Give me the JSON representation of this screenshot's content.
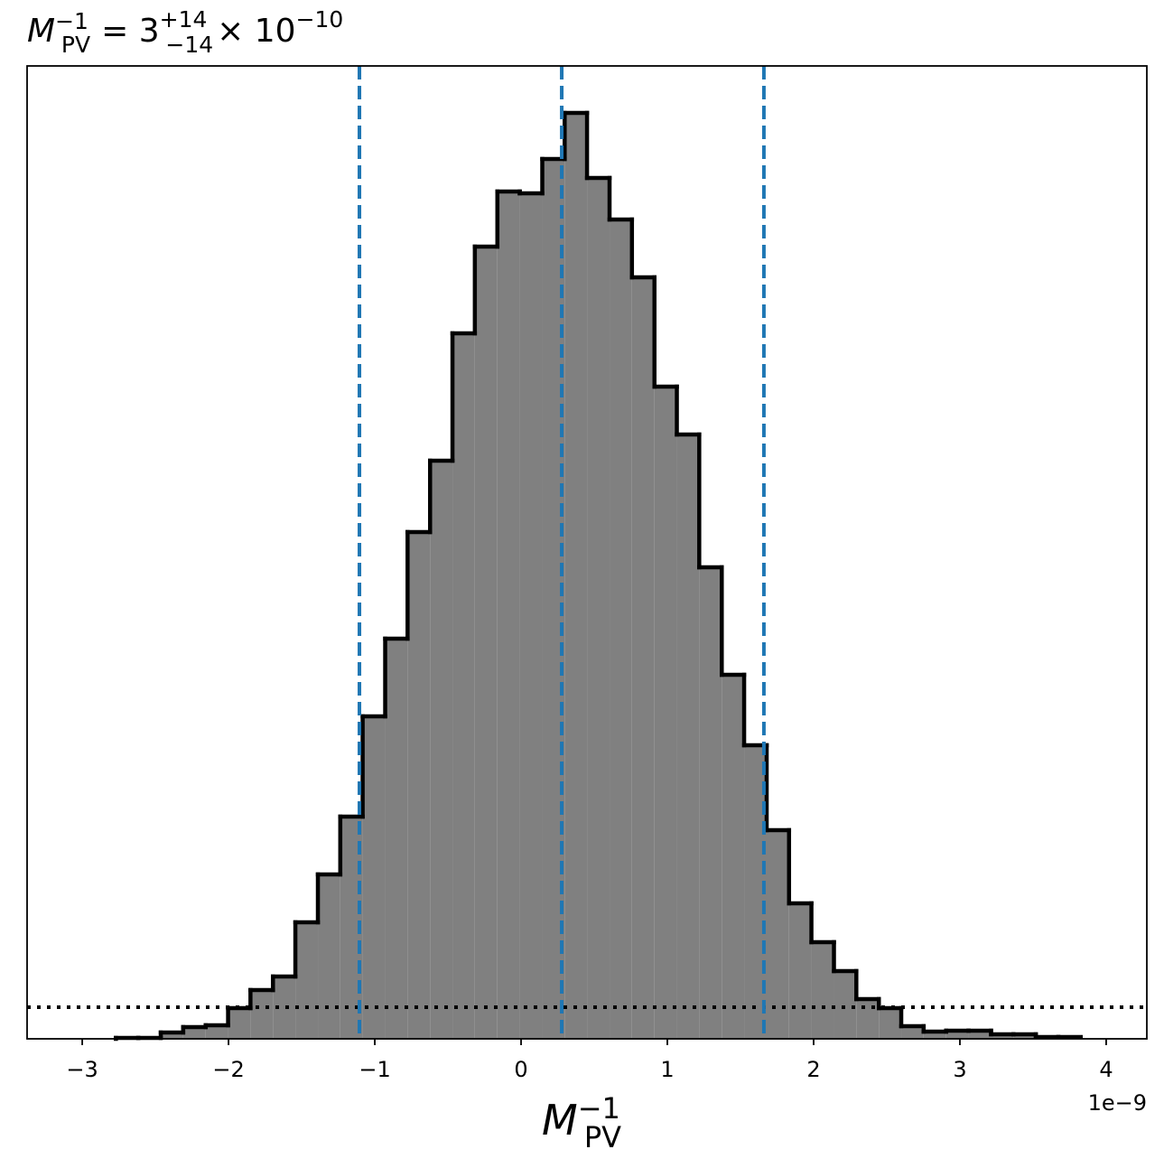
{
  "chart_data": {
    "type": "histogram",
    "title": {
      "symbol": "M",
      "sup": "−1",
      "sub": "PV",
      "equals": "= 3",
      "upper": "+14",
      "lower": "−14",
      "times": "× 10",
      "exponent": "−10"
    },
    "x_label": {
      "symbol": "M",
      "sup": "−1",
      "sub": "PV"
    },
    "x_offset_label": "1e−9",
    "bins": [
      -2.77,
      -2.617,
      -2.463,
      -2.31,
      -2.156,
      -2.003,
      -1.85,
      -1.696,
      -1.543,
      -1.389,
      -1.236,
      -1.083,
      -0.929,
      -0.776,
      -0.622,
      -0.469,
      -0.316,
      -0.162,
      -0.009,
      0.145,
      0.298,
      0.451,
      0.605,
      0.758,
      0.912,
      1.065,
      1.218,
      1.372,
      1.525,
      1.679,
      1.832,
      1.985,
      2.139,
      2.292,
      2.446,
      2.599,
      2.752,
      2.906,
      3.059,
      3.213,
      3.366,
      3.519,
      3.673,
      3.826
    ],
    "values": [
      1,
      1,
      7,
      13,
      15,
      34,
      54,
      69,
      129,
      182,
      246,
      357,
      443,
      561,
      640,
      781,
      877,
      938,
      936,
      974,
      1025,
      953,
      907,
      843,
      722,
      669,
      522,
      403,
      325,
      231,
      150,
      107,
      75,
      44,
      34,
      14,
      8,
      9,
      9,
      5,
      5,
      2,
      2
    ],
    "color": "#808080",
    "edge_color": "#000000",
    "quantile_lines": [
      -1.105,
      0.278,
      1.66
    ],
    "quantile_color": "#1f77b4",
    "threshold_line": 35,
    "xlim": [
      -3.377,
      4.278
    ],
    "ylim": [
      0,
      1077
    ],
    "xticks": [
      {
        "value": -3,
        "label": "−3"
      },
      {
        "value": -2,
        "label": "−2"
      },
      {
        "value": -1,
        "label": "−1"
      },
      0,
      1,
      2,
      3,
      4
    ]
  }
}
